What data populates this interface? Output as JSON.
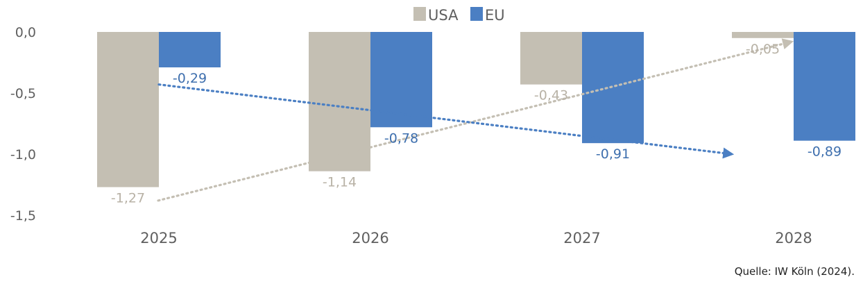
{
  "chart_data": {
    "type": "bar",
    "categories": [
      "2025",
      "2026",
      "2027",
      "2028"
    ],
    "series": [
      {
        "name": "USA",
        "color": "#c4bfb3",
        "label_color": "#b8b2a6",
        "values": [
          -1.27,
          -1.14,
          -0.43,
          -0.05
        ],
        "labels": [
          "-1,27",
          "-1,14",
          "-0,43",
          "-0,05"
        ]
      },
      {
        "name": "EU",
        "color": "#4b7fc3",
        "label_color": "#3e6fae",
        "values": [
          -0.29,
          -0.78,
          -0.91,
          -0.89
        ],
        "labels": [
          "-0,29",
          "-0,78",
          "-0,91",
          "-0,89"
        ]
      }
    ],
    "y_ticks": [
      {
        "value": 0,
        "label": "0,0"
      },
      {
        "value": -0.5,
        "label": "-0,5"
      },
      {
        "value": -1.0,
        "label": "-1,0"
      },
      {
        "value": -1.5,
        "label": "-1,5"
      }
    ],
    "ylim": [
      -1.5,
      0
    ],
    "legend_position": "top-center",
    "trend_arrows": [
      {
        "series": "USA",
        "from": {
          "category": "2025",
          "value": -1.38
        },
        "to": {
          "category": "2028",
          "value": -0.08
        },
        "style": "dotted"
      },
      {
        "series": "EU",
        "from": {
          "category": "2025",
          "value": -0.43
        },
        "to": {
          "category": "2028",
          "value": -1.0
        },
        "style": "dotted"
      }
    ],
    "grid": false
  },
  "source": "Quelle: IW Köln (2024)."
}
